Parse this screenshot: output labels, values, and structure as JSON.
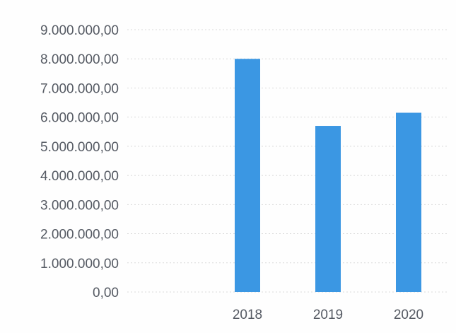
{
  "chart_data": {
    "type": "bar",
    "categories": [
      "2018",
      "2019",
      "2020"
    ],
    "values": [
      8000000,
      5700000,
      6150000
    ],
    "ylim": [
      0,
      9000000
    ],
    "yticks": [
      0,
      1000000,
      2000000,
      3000000,
      4000000,
      5000000,
      6000000,
      7000000,
      8000000,
      9000000
    ],
    "ytick_labels": [
      "0,00",
      "1.000.000,00",
      "2.000.000,00",
      "3.000.000,00",
      "4.000.000,00",
      "5.000.000,00",
      "6.000.000,00",
      "7.000.000,00",
      "8.000.000,00",
      "9.000.000,00"
    ],
    "grid": true,
    "legend": "none",
    "bar_color": "#3b97e3"
  }
}
